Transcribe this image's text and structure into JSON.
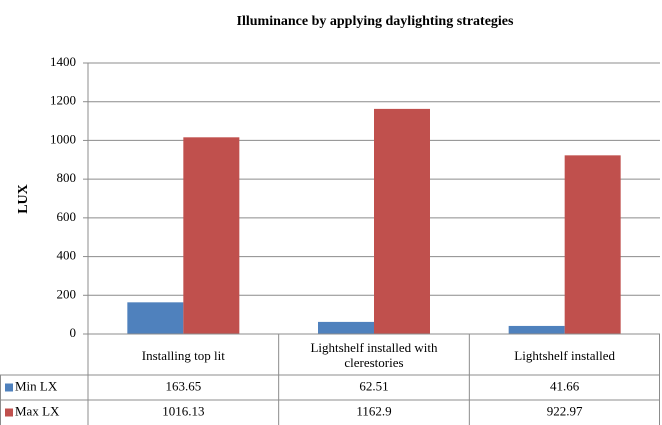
{
  "chart_data": {
    "type": "bar",
    "title": "Illuminance by applying daylighting strategies",
    "y_label": "LUX",
    "categories": [
      "Installing top lit",
      "Lightshelf installed with clerestories",
      "Lightshelf installed"
    ],
    "series": [
      {
        "name": "Min LX",
        "color": "#4f81bd",
        "values": [
          163.65,
          62.51,
          41.66
        ]
      },
      {
        "name": "Max LX",
        "color": "#c0504d",
        "values": [
          1016.13,
          1162.9,
          922.97
        ]
      }
    ],
    "ylim": [
      0,
      1400
    ],
    "yticks": [
      0,
      200,
      400,
      600,
      800,
      1000,
      1200,
      1400
    ],
    "grid": true,
    "data_table": true
  }
}
